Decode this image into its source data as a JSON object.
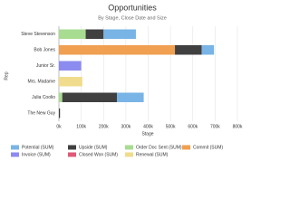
{
  "chart_data": {
    "type": "stacked-barh",
    "title": "Opportunities",
    "subtitle": "By Stage, Close Date and Size",
    "x_label": "Stage",
    "y_label": "Rep",
    "categories": [
      "Steve Stevenson",
      "Bob Jones",
      "Junior Sr.",
      "Mrs. Madame",
      "Julia Coolio",
      "The New Guy"
    ],
    "series": [
      {
        "name": "Commit (SUM)",
        "color": "#f0a050",
        "values": [
          0,
          520000,
          0,
          0,
          0,
          0
        ]
      },
      {
        "name": "Order Doc Sent (SUM)",
        "color": "#a8dc90",
        "values": [
          120000,
          0,
          0,
          0,
          15000,
          0
        ]
      },
      {
        "name": "Invoice (SUM)",
        "color": "#8c8cf0",
        "values": [
          0,
          0,
          100000,
          0,
          0,
          0
        ]
      },
      {
        "name": "Renewal (SUM)",
        "color": "#f0dc8c",
        "values": [
          0,
          0,
          0,
          105000,
          0,
          0
        ]
      },
      {
        "name": "Closed Won (SUM)",
        "color": "#e05a78",
        "values": [
          0,
          0,
          0,
          0,
          0,
          0
        ]
      },
      {
        "name": "Upside (SUM)",
        "color": "#404040",
        "values": [
          80000,
          120000,
          0,
          0,
          245000,
          5000
        ]
      },
      {
        "name": "Potential (SUM)",
        "color": "#78b4e6",
        "values": [
          145000,
          55000,
          0,
          0,
          120000,
          0
        ]
      }
    ],
    "legend_order": [
      6,
      5,
      1,
      0,
      2,
      4,
      3
    ],
    "xlim": [
      0,
      800000
    ],
    "xticks": [
      {
        "value": 0,
        "label": "0k"
      },
      {
        "value": 100000,
        "label": "100k"
      },
      {
        "value": 200000,
        "label": "200k"
      },
      {
        "value": 300000,
        "label": "300k"
      },
      {
        "value": 400000,
        "label": "400k"
      },
      {
        "value": 500000,
        "label": "500k"
      },
      {
        "value": 600000,
        "label": "600k"
      },
      {
        "value": 700000,
        "label": "700k"
      },
      {
        "value": 800000,
        "label": "800k"
      }
    ],
    "grid": true
  }
}
